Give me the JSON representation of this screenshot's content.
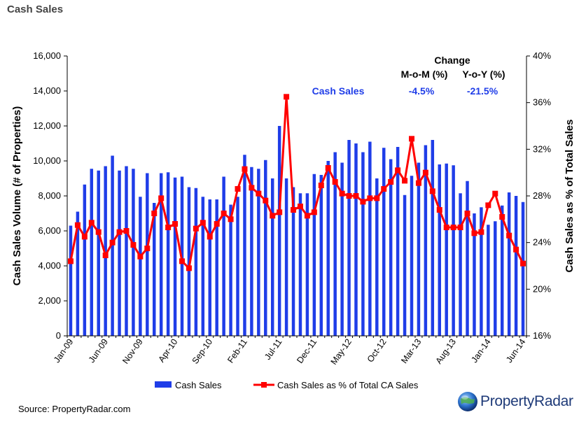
{
  "page": {
    "title": "Cash Sales",
    "source": "Source: PropertyRadar.com",
    "logo_text": "PropertyRadar"
  },
  "change_box": {
    "header": "Change",
    "col1": "M-o-M (%)",
    "col2": "Y-o-Y (%)",
    "row_label": "Cash Sales",
    "mom": "-4.5%",
    "yoy": "-21.5%"
  },
  "chart_data": {
    "type": "bar",
    "ylabel": "Cash Sales Volume (# of Properties)",
    "y2label": "Cash Sales as % of Total Sales",
    "ylim": [
      0,
      16000
    ],
    "y2lim": [
      16,
      40
    ],
    "yticks": [
      "0",
      "2,000",
      "4,000",
      "6,000",
      "8,000",
      "10,000",
      "12,000",
      "14,000",
      "16,000"
    ],
    "y2ticks": [
      "16%",
      "20%",
      "24%",
      "28%",
      "32%",
      "36%",
      "40%"
    ],
    "xtick_labels": [
      {
        "label": "Jan-09",
        "index": 0
      },
      {
        "label": "Jun-09",
        "index": 5
      },
      {
        "label": "Nov-09",
        "index": 10
      },
      {
        "label": "Apr-10",
        "index": 15
      },
      {
        "label": "Sep-10",
        "index": 20
      },
      {
        "label": "Feb-11",
        "index": 25
      },
      {
        "label": "Jul-11",
        "index": 30
      },
      {
        "label": "Dec-11",
        "index": 35
      },
      {
        "label": "May-12",
        "index": 40
      },
      {
        "label": "Oct-12",
        "index": 45
      },
      {
        "label": "Mar-13",
        "index": 50
      },
      {
        "label": "Aug-13",
        "index": 55
      },
      {
        "label": "Jan-14",
        "index": 60
      },
      {
        "label": "Jun-14",
        "index": 65
      }
    ],
    "bar_color": "#1f3de8",
    "line_color": "#ff0000",
    "series": [
      {
        "name": "Cash Sales",
        "kind": "bar",
        "values": [
          6300,
          7100,
          8650,
          9550,
          9450,
          9700,
          10300,
          9450,
          9700,
          9550,
          7950,
          9300,
          7600,
          9300,
          9350,
          9050,
          9100,
          8500,
          8450,
          7950,
          7800,
          7800,
          9100,
          7500,
          7950,
          10350,
          9650,
          9550,
          10050,
          9000,
          12000,
          9000,
          8500,
          8150,
          8150,
          9250,
          9200,
          10000,
          10500,
          9900,
          11200,
          11000,
          10500,
          11100,
          9000,
          10750,
          10100,
          10800,
          8050,
          9150,
          9900,
          10900,
          11200,
          9800,
          9850,
          9750,
          8150,
          8850,
          7000,
          7350,
          6350,
          6550,
          7450,
          8200,
          8000,
          7650
        ]
      },
      {
        "name": "Cash Sales as % of Total CA Sales",
        "kind": "line",
        "axis": "right",
        "values": [
          22.4,
          25.5,
          24.5,
          25.7,
          24.9,
          22.9,
          24,
          24.9,
          25,
          23.8,
          22.8,
          23.5,
          26.5,
          27.8,
          25.3,
          25.6,
          22.4,
          21.8,
          25.2,
          25.7,
          24.5,
          25.6,
          26.5,
          26.0,
          28.6,
          30.3,
          28.7,
          28.2,
          27.6,
          26.3,
          26.6,
          36.5,
          26.8,
          27.1,
          26.3,
          26.6,
          28.9,
          30.4,
          29.2,
          28.2,
          28.0,
          28.0,
          27.5,
          27.8,
          27.8,
          28.6,
          29.2,
          30.2,
          29.3,
          32.9,
          29.1,
          30.0,
          28.4,
          26.8,
          25.3,
          25.3,
          25.3,
          26.5,
          24.8,
          24.9,
          27.2,
          28.2,
          26.2,
          24.6,
          23.4,
          22.2
        ]
      }
    ]
  }
}
